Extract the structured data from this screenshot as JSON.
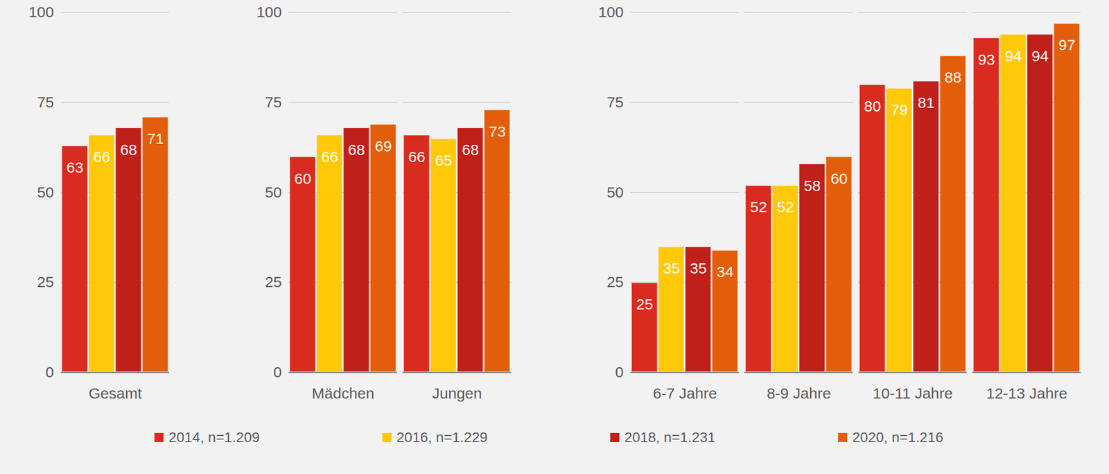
{
  "chart_data": {
    "type": "bar",
    "categories": [
      "Gesamt",
      null,
      "Mädchen",
      "Jungen",
      null,
      "6-7 Jahre",
      "8-9 Jahre",
      "10-11 Jahre",
      "12-13 Jahre"
    ],
    "series": [
      {
        "name": "2014, n=1.209",
        "color": "#d92b1f",
        "values": [
          63,
          null,
          60,
          66,
          null,
          25,
          52,
          80,
          93
        ]
      },
      {
        "name": "2016, n=1.229",
        "color": "#ffc90a",
        "values": [
          66,
          null,
          66,
          65,
          null,
          35,
          52,
          79,
          94
        ]
      },
      {
        "name": "2018, n=1.231",
        "color": "#c0201a",
        "values": [
          68,
          null,
          68,
          68,
          null,
          35,
          58,
          81,
          94
        ]
      },
      {
        "name": "2020, n=1.216",
        "color": "#e35e0a",
        "values": [
          71,
          null,
          69,
          73,
          null,
          34,
          60,
          88,
          97
        ]
      }
    ],
    "ylim": [
      0,
      100
    ],
    "yticks": [
      0,
      25,
      50,
      75,
      100
    ],
    "grid": true,
    "data_labels": true,
    "legend": "bottom"
  }
}
